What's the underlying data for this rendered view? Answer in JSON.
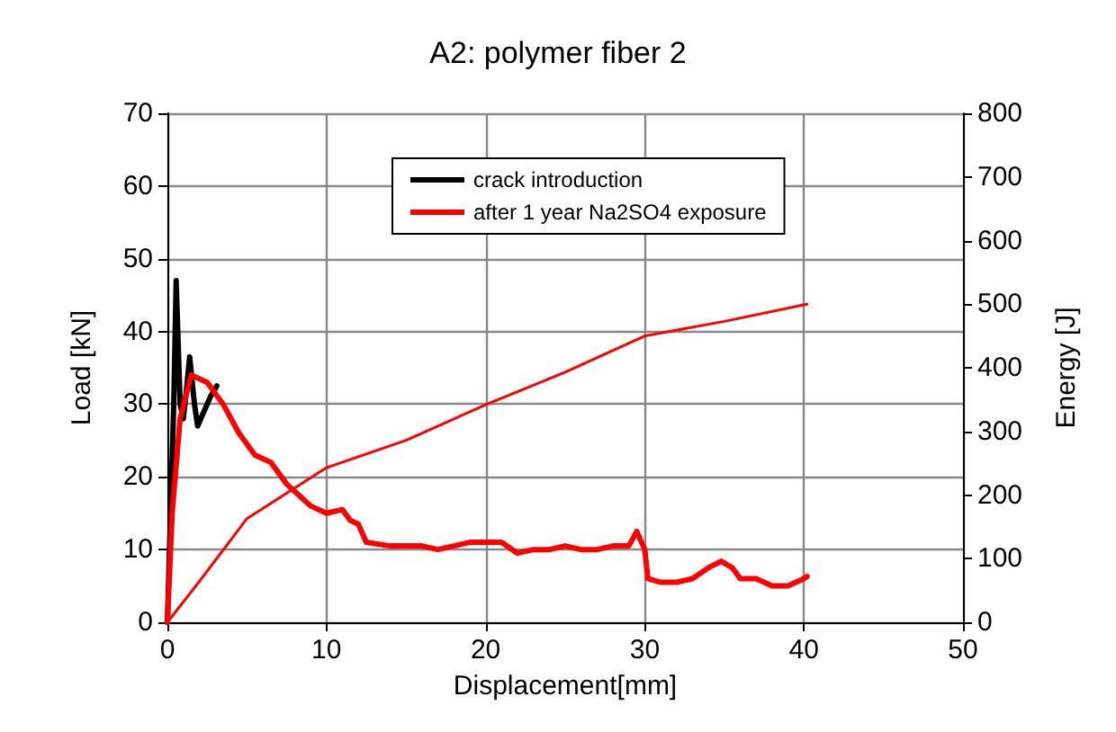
{
  "chart_data": {
    "type": "line",
    "title": "A2: polymer fiber 2",
    "xlabel": "Displacement[mm]",
    "ylabel": "Load [kN]",
    "y2label": "Energy [J]",
    "xlim": [
      0,
      50
    ],
    "xticks": [
      0,
      10,
      20,
      30,
      40,
      50
    ],
    "ylim": [
      0,
      70
    ],
    "yticks": [
      0,
      10,
      20,
      30,
      40,
      50,
      60,
      70
    ],
    "y2lim": [
      0,
      800
    ],
    "y2ticks": [
      0,
      100,
      200,
      300,
      400,
      500,
      600,
      700,
      800
    ],
    "grid": true,
    "legend": "top",
    "marker": "none",
    "line_style": "solid",
    "series": [
      {
        "name": "crack introduction",
        "color": "#000000",
        "x": [
          0,
          0.2,
          0.4,
          0.55,
          0.8,
          1.0,
          1.2,
          1.4,
          1.7,
          1.9,
          2.3,
          2.7,
          3.1
        ],
        "values": [
          0,
          15,
          30,
          47,
          30,
          28,
          32,
          36.5,
          30,
          27,
          29,
          31,
          32.5
        ]
      },
      {
        "name": "after 1 year Na2SO4 exposure",
        "color": "#ff0000",
        "x": [
          0,
          0.3,
          0.8,
          1.5,
          2.5,
          3.5,
          4.5,
          5.5,
          6.5,
          7.5,
          8.5,
          9,
          10,
          11,
          11.5,
          12,
          12.5,
          14,
          16,
          17,
          18,
          19,
          20,
          21,
          22,
          23,
          24,
          25,
          26,
          27,
          28,
          29,
          29.5,
          30,
          30.2,
          31,
          32,
          33,
          34,
          34.8,
          35.5,
          36,
          37,
          38,
          39,
          40,
          40.2
        ],
        "values": [
          0,
          15,
          28,
          34,
          33,
          30,
          26,
          23,
          22,
          19,
          17,
          16,
          15,
          15.5,
          14,
          13.5,
          11,
          10.5,
          10.5,
          10,
          10.5,
          11,
          11,
          11,
          9.5,
          10,
          10,
          10.5,
          10,
          10,
          10.5,
          10.5,
          12.5,
          10,
          6,
          5.5,
          5.5,
          6,
          7.5,
          8.4,
          7.5,
          6,
          6,
          5,
          5,
          6,
          6.3
        ]
      },
      {
        "color": "#ff0000",
        "axis": "y2",
        "x": [
          0,
          2,
          5,
          10,
          15,
          20,
          25,
          30,
          35,
          40.2
        ],
        "values": [
          0,
          64,
          163,
          243,
          286,
          342,
          393,
          450,
          473,
          500
        ]
      }
    ]
  }
}
